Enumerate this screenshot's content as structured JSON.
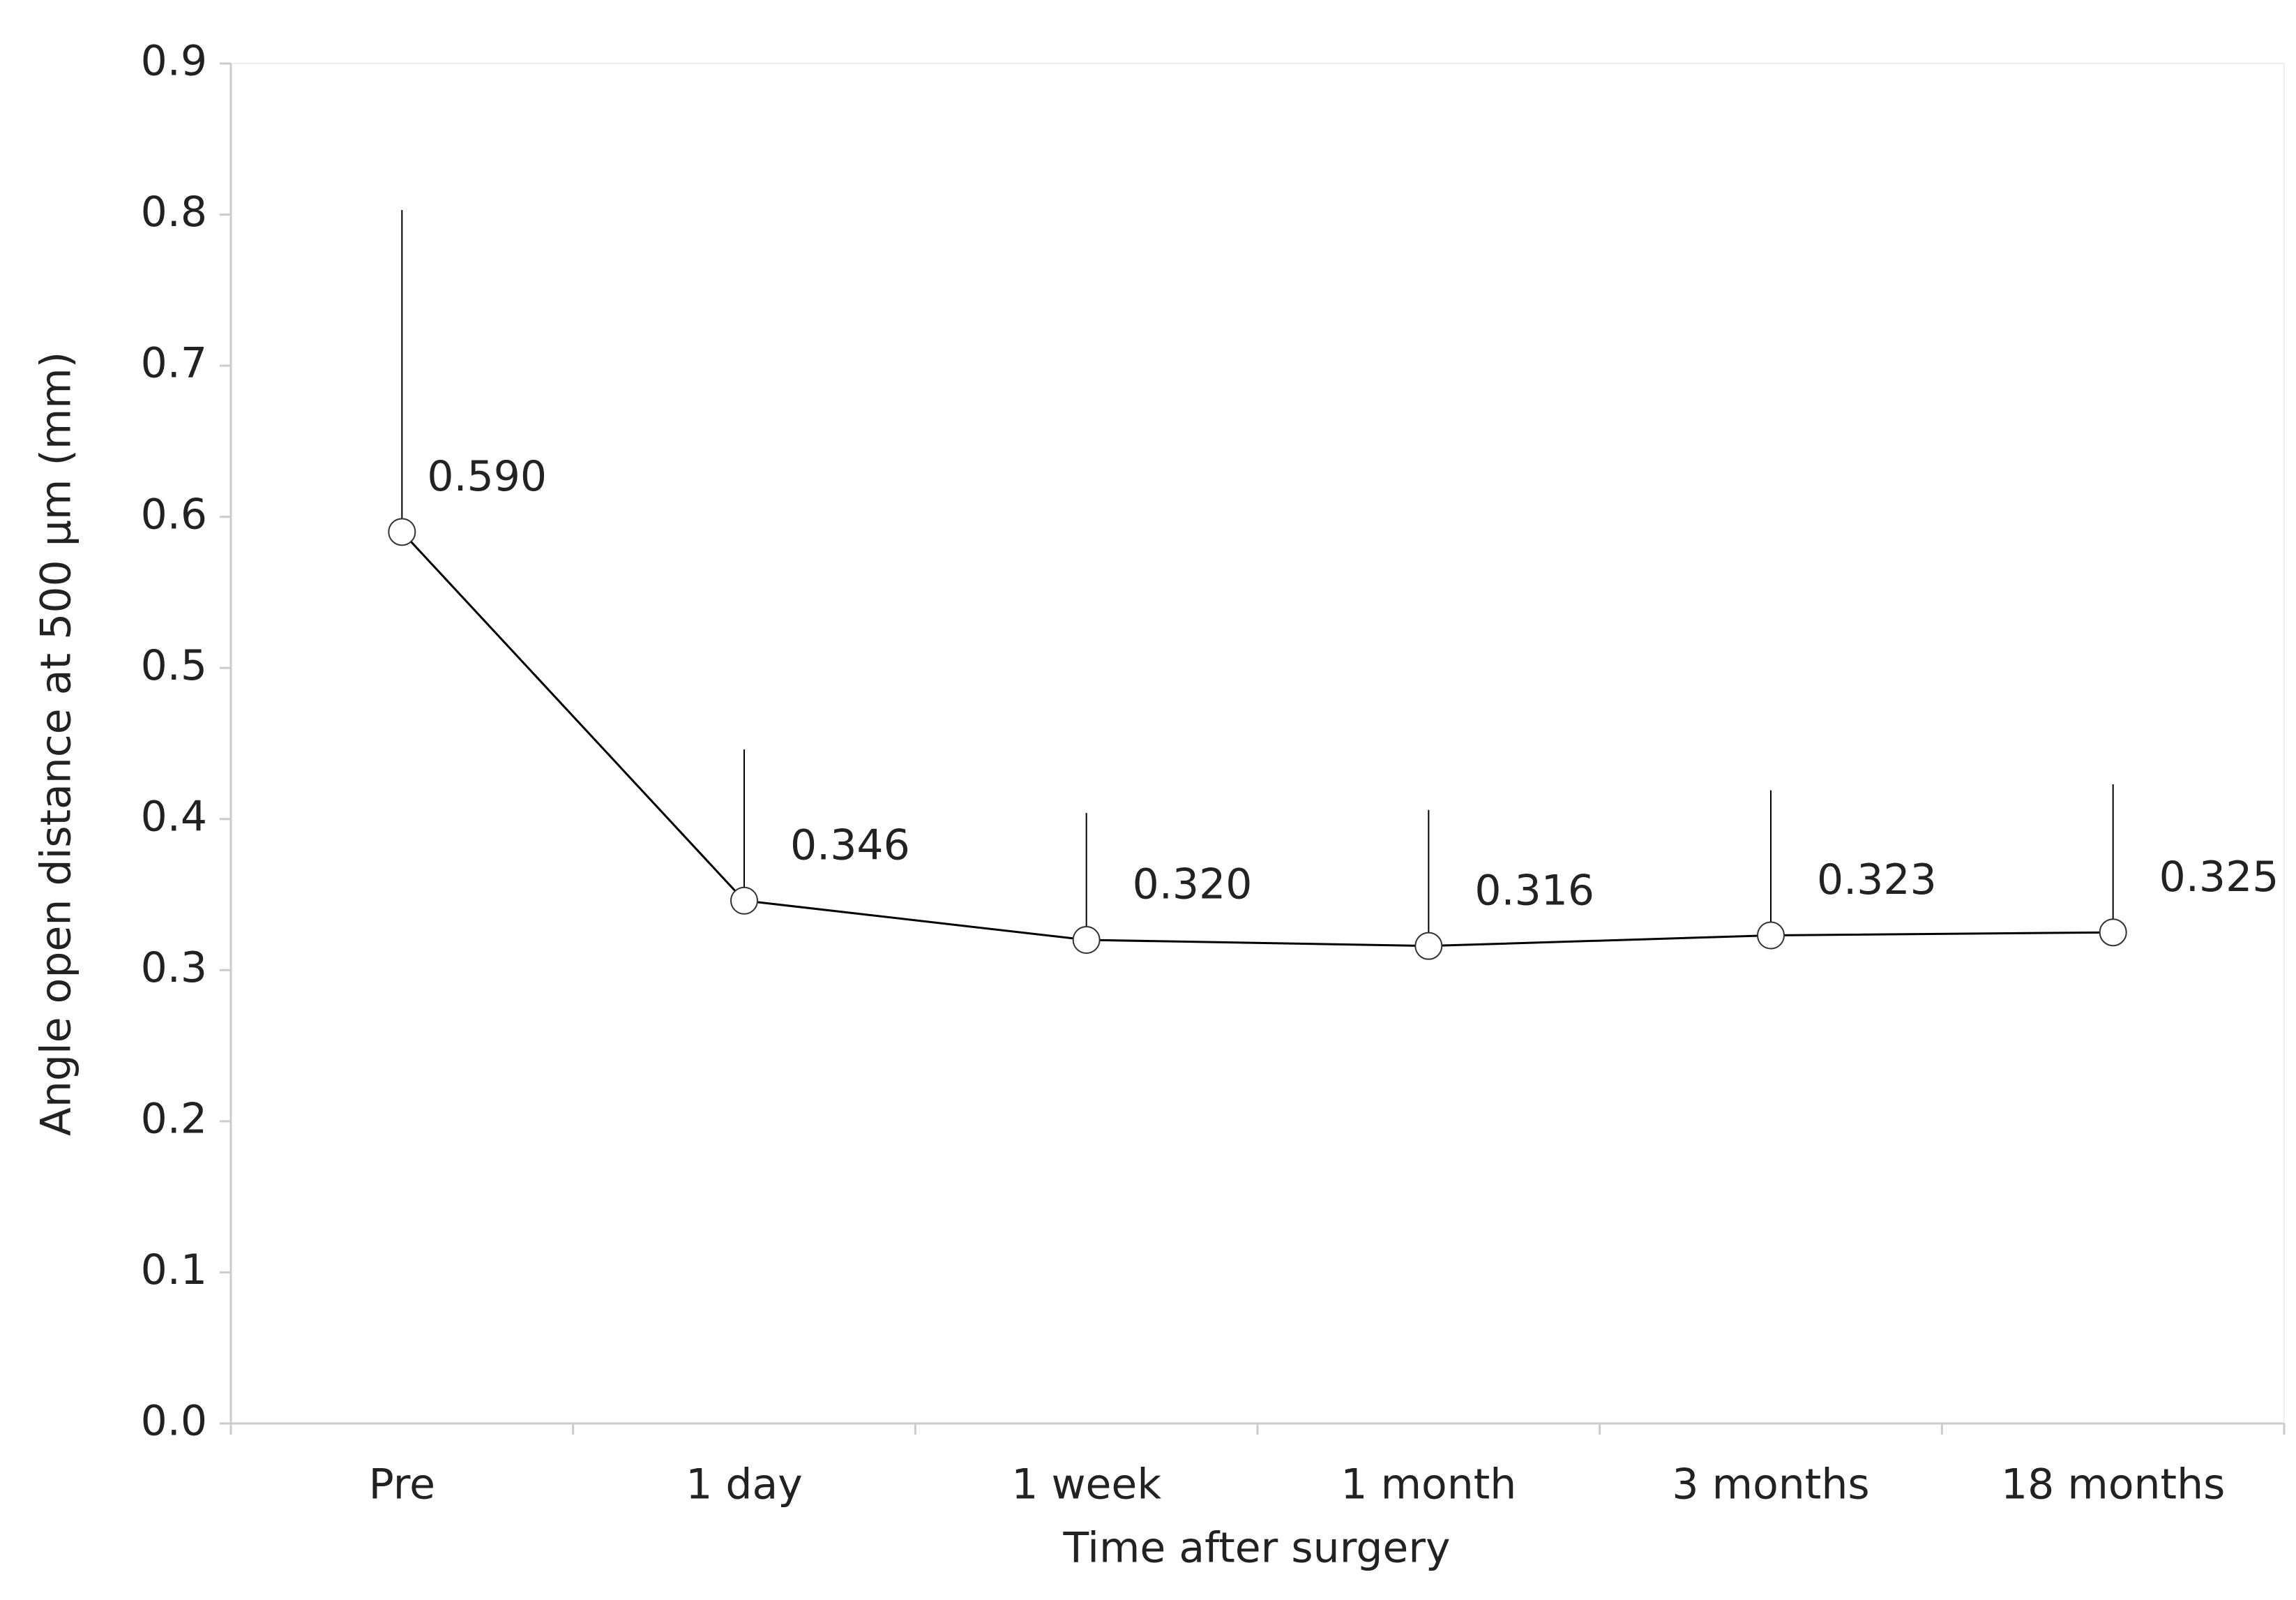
{
  "chart_data": {
    "type": "line",
    "x_label": "Time after surgery",
    "y_label": "Angle open distance at 500 µm (mm)",
    "categories": [
      "Pre",
      "1 day",
      "1 week",
      "1 month",
      "3 months",
      "18 months"
    ],
    "values": [
      0.59,
      0.346,
      0.32,
      0.316,
      0.323,
      0.325
    ],
    "value_labels": [
      "0.590",
      "0.346",
      "0.320",
      "0.316",
      "0.323",
      "0.325"
    ],
    "errors": [
      0.213,
      0.1,
      0.084,
      0.09,
      0.096,
      0.098
    ],
    "color": "#000000",
    "ylim": [
      0,
      0.9
    ],
    "yticks": [
      {
        "value": 0,
        "label": "0.0"
      },
      0.1,
      0.2,
      0.3,
      0.4,
      0.5,
      0.6,
      0.7,
      0.8,
      0.9
    ],
    "grid": false
  }
}
